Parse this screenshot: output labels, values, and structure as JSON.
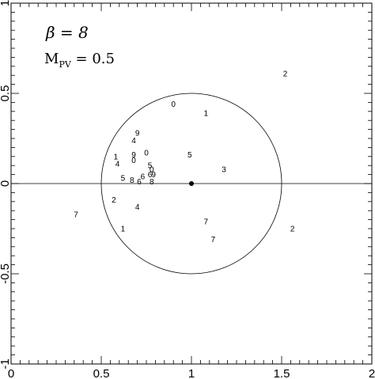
{
  "chart_data": {
    "type": "scatter",
    "title": "",
    "xlabel": "",
    "ylabel": "",
    "xlim": [
      0,
      2
    ],
    "ylim": [
      -1,
      1
    ],
    "x_ticks": [
      {
        "value": 0,
        "label": "0"
      },
      {
        "value": 0.5,
        "label": "0.5"
      },
      {
        "value": 1,
        "label": "1"
      },
      {
        "value": 1.5,
        "label": "1.5"
      },
      {
        "value": 2,
        "label": "2"
      }
    ],
    "y_ticks": [
      {
        "value": -1,
        "label": "-1"
      },
      {
        "value": -0.5,
        "label": "-0.5"
      },
      {
        "value": 0,
        "label": "0"
      },
      {
        "value": 0.5,
        "label": "0.5"
      },
      {
        "value": 1,
        "label": "1"
      }
    ],
    "annotations": [
      {
        "text": "β = 8"
      },
      {
        "text_main": "M",
        "text_sub": "PV",
        "text_rest": " = 0.5"
      }
    ],
    "reference_line_y": 0,
    "circle": {
      "center": [
        1,
        0
      ],
      "radius": 0.5
    },
    "center_point": [
      1,
      0
    ],
    "points": [
      {
        "label": "2",
        "x": 1.52,
        "y": 0.61
      },
      {
        "label": "0",
        "x": 0.9,
        "y": 0.44
      },
      {
        "label": "1",
        "x": 1.08,
        "y": 0.39
      },
      {
        "label": "9",
        "x": 0.7,
        "y": 0.28
      },
      {
        "label": "4",
        "x": 0.68,
        "y": 0.24
      },
      {
        "label": "0",
        "x": 0.75,
        "y": 0.17
      },
      {
        "label": "9",
        "x": 0.68,
        "y": 0.16
      },
      {
        "label": "5",
        "x": 0.99,
        "y": 0.16
      },
      {
        "label": "1",
        "x": 0.58,
        "y": 0.15
      },
      {
        "label": "0",
        "x": 0.68,
        "y": 0.13
      },
      {
        "label": "4",
        "x": 0.59,
        "y": 0.11
      },
      {
        "label": "5",
        "x": 0.77,
        "y": 0.1
      },
      {
        "label": "0",
        "x": 0.78,
        "y": 0.08
      },
      {
        "label": "3",
        "x": 1.18,
        "y": 0.08
      },
      {
        "label": "6",
        "x": 0.77,
        "y": 0.05
      },
      {
        "label": "9",
        "x": 0.79,
        "y": 0.05
      },
      {
        "label": "5",
        "x": 0.62,
        "y": 0.03
      },
      {
        "label": "8",
        "x": 0.67,
        "y": 0.02
      },
      {
        "label": "6",
        "x": 0.73,
        "y": 0.04
      },
      {
        "label": "6",
        "x": 0.71,
        "y": 0.01
      },
      {
        "label": "8",
        "x": 0.78,
        "y": 0.01
      },
      {
        "label": "2",
        "x": 0.57,
        "y": -0.09
      },
      {
        "label": "4",
        "x": 0.7,
        "y": -0.13
      },
      {
        "label": "7",
        "x": 0.36,
        "y": -0.17
      },
      {
        "label": "7",
        "x": 1.08,
        "y": -0.21
      },
      {
        "label": "1",
        "x": 0.62,
        "y": -0.25
      },
      {
        "label": "2",
        "x": 1.56,
        "y": -0.25
      },
      {
        "label": "7",
        "x": 1.12,
        "y": -0.31
      }
    ]
  }
}
